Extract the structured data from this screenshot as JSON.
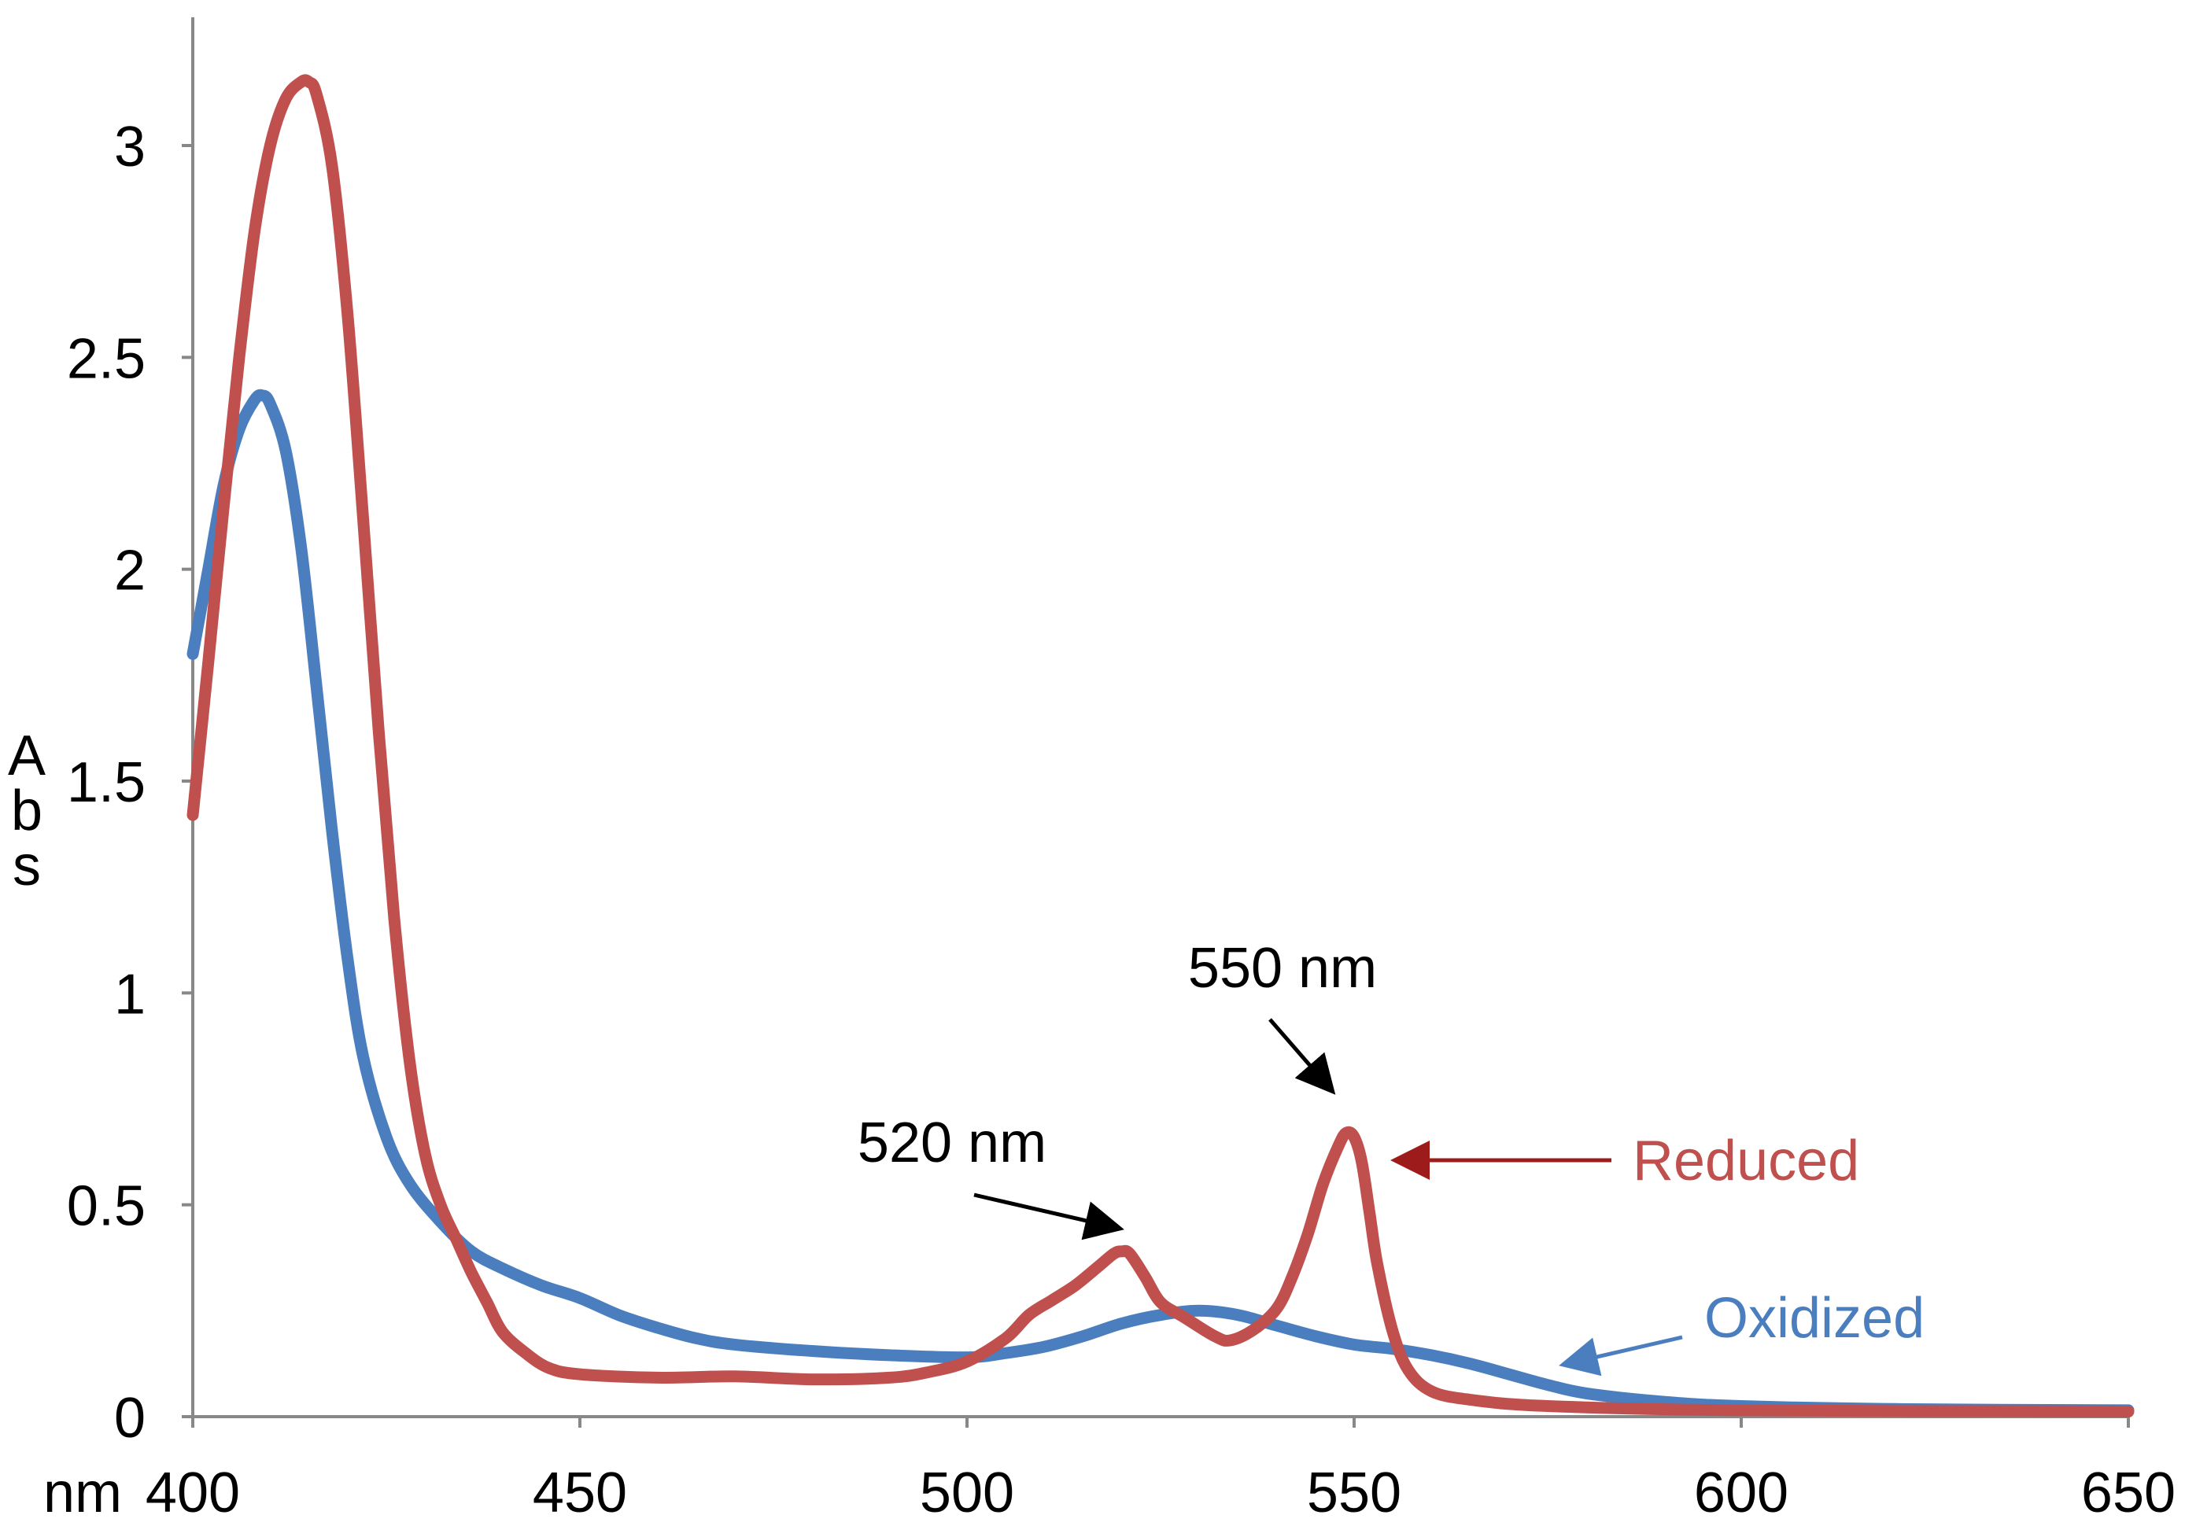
{
  "chart_data": {
    "type": "line",
    "title": "",
    "xlabel": "nm",
    "ylabel": "Abs",
    "ylabel_letters": [
      "A",
      "b",
      "s"
    ],
    "xlim": [
      400,
      650
    ],
    "ylim": [
      0,
      3.25
    ],
    "x_ticks": [
      400,
      450,
      500,
      550,
      600,
      650
    ],
    "y_ticks": [
      0,
      0.5,
      1,
      1.5,
      2,
      2.5,
      3
    ],
    "y_tick_labels": [
      "0",
      "0.5",
      "1",
      "1.5",
      "2",
      "2.5",
      "3"
    ],
    "grid": false,
    "series": [
      {
        "name": "Oxidized",
        "color": "#4a7ebf",
        "points": [
          [
            400,
            1.8
          ],
          [
            402,
            2.0
          ],
          [
            404,
            2.2
          ],
          [
            406,
            2.33
          ],
          [
            408,
            2.4
          ],
          [
            409,
            2.41
          ],
          [
            410,
            2.39
          ],
          [
            412,
            2.28
          ],
          [
            414,
            2.05
          ],
          [
            416,
            1.72
          ],
          [
            418,
            1.38
          ],
          [
            420,
            1.08
          ],
          [
            422,
            0.85
          ],
          [
            425,
            0.66
          ],
          [
            428,
            0.55
          ],
          [
            432,
            0.46
          ],
          [
            436,
            0.39
          ],
          [
            440,
            0.35
          ],
          [
            445,
            0.31
          ],
          [
            450,
            0.28
          ],
          [
            455,
            0.24
          ],
          [
            460,
            0.21
          ],
          [
            465,
            0.185
          ],
          [
            470,
            0.17
          ],
          [
            480,
            0.155
          ],
          [
            490,
            0.145
          ],
          [
            500,
            0.14
          ],
          [
            505,
            0.15
          ],
          [
            510,
            0.165
          ],
          [
            515,
            0.19
          ],
          [
            520,
            0.22
          ],
          [
            525,
            0.24
          ],
          [
            530,
            0.25
          ],
          [
            535,
            0.24
          ],
          [
            540,
            0.215
          ],
          [
            545,
            0.19
          ],
          [
            550,
            0.17
          ],
          [
            555,
            0.16
          ],
          [
            560,
            0.145
          ],
          [
            565,
            0.125
          ],
          [
            570,
            0.1
          ],
          [
            575,
            0.075
          ],
          [
            580,
            0.055
          ],
          [
            590,
            0.035
          ],
          [
            600,
            0.025
          ],
          [
            620,
            0.018
          ],
          [
            650,
            0.015
          ]
        ]
      },
      {
        "name": "Reduced",
        "color": "#c0504d",
        "points": [
          [
            400,
            1.42
          ],
          [
            402,
            1.78
          ],
          [
            404,
            2.15
          ],
          [
            406,
            2.5
          ],
          [
            408,
            2.8
          ],
          [
            410,
            3.0
          ],
          [
            412,
            3.11
          ],
          [
            414,
            3.15
          ],
          [
            415,
            3.15
          ],
          [
            416,
            3.12
          ],
          [
            418,
            2.95
          ],
          [
            420,
            2.6
          ],
          [
            422,
            2.12
          ],
          [
            424,
            1.62
          ],
          [
            426,
            1.18
          ],
          [
            428,
            0.84
          ],
          [
            430,
            0.62
          ],
          [
            432,
            0.5
          ],
          [
            434,
            0.42
          ],
          [
            436,
            0.34
          ],
          [
            438,
            0.27
          ],
          [
            440,
            0.2
          ],
          [
            443,
            0.15
          ],
          [
            446,
            0.115
          ],
          [
            450,
            0.1
          ],
          [
            460,
            0.092
          ],
          [
            470,
            0.095
          ],
          [
            480,
            0.088
          ],
          [
            490,
            0.092
          ],
          [
            495,
            0.105
          ],
          [
            500,
            0.13
          ],
          [
            505,
            0.185
          ],
          [
            508,
            0.24
          ],
          [
            511,
            0.275
          ],
          [
            514,
            0.31
          ],
          [
            517,
            0.355
          ],
          [
            519,
            0.385
          ],
          [
            520,
            0.39
          ],
          [
            521,
            0.385
          ],
          [
            523,
            0.33
          ],
          [
            525,
            0.27
          ],
          [
            528,
            0.235
          ],
          [
            532,
            0.19
          ],
          [
            534,
            0.18
          ],
          [
            537,
            0.205
          ],
          [
            540,
            0.255
          ],
          [
            542,
            0.33
          ],
          [
            544,
            0.43
          ],
          [
            546,
            0.55
          ],
          [
            548,
            0.64
          ],
          [
            549,
            0.67
          ],
          [
            550,
            0.66
          ],
          [
            551,
            0.6
          ],
          [
            552,
            0.48
          ],
          [
            553,
            0.36
          ],
          [
            555,
            0.2
          ],
          [
            557,
            0.11
          ],
          [
            560,
            0.06
          ],
          [
            565,
            0.04
          ],
          [
            575,
            0.025
          ],
          [
            600,
            0.015
          ],
          [
            650,
            0.012
          ]
        ]
      }
    ],
    "annotations": [
      {
        "text": "520 nm",
        "x": 520,
        "y": 0.39
      },
      {
        "text": "550 nm",
        "x": 550,
        "y": 0.67
      }
    ],
    "legend": [
      {
        "text": "Reduced",
        "color": "#c0504d"
      },
      {
        "text": "Oxidized",
        "color": "#4a7ebf"
      }
    ]
  }
}
